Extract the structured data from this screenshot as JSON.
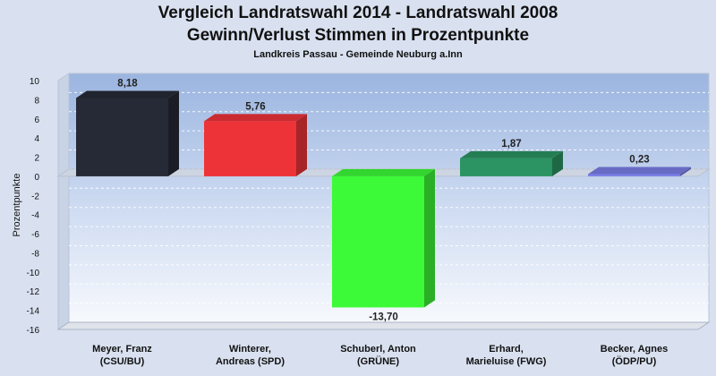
{
  "chart_data": {
    "type": "bar",
    "title": "Vergleich Landratswahl 2014 - Landratswahl 2008",
    "subtitle": "Gewinn/Verlust Stimmen in Prozentpunkte",
    "subsubtitle": "Landkreis Passau - Gemeinde Neuburg a.Inn",
    "xlabel": "",
    "ylabel": "Prozentpunkte",
    "ylim": [
      -16,
      10
    ],
    "yticks": [
      10,
      8,
      6,
      4,
      2,
      0,
      -2,
      -4,
      -6,
      -8,
      -10,
      -12,
      -14,
      -16
    ],
    "grid": true,
    "categories": [
      [
        "Meyer, Franz",
        "(CSU/BU)"
      ],
      [
        "Winterer,",
        "Andreas (SPD)"
      ],
      [
        "Schuberl, Anton",
        "(GRÜNE)"
      ],
      [
        "Erhard,",
        "Marieluise (FWG)"
      ],
      [
        "Becker, Agnes",
        "(ÖDP/PU)"
      ]
    ],
    "values": [
      8.18,
      5.76,
      -13.7,
      1.87,
      0.23
    ],
    "value_labels": [
      "8,18",
      "5,76",
      "-13,70",
      "1,87",
      "0,23"
    ],
    "colors": [
      "#262a36",
      "#ee3338",
      "#3cfa37",
      "#2b9462",
      "#7a7ee6"
    ]
  }
}
